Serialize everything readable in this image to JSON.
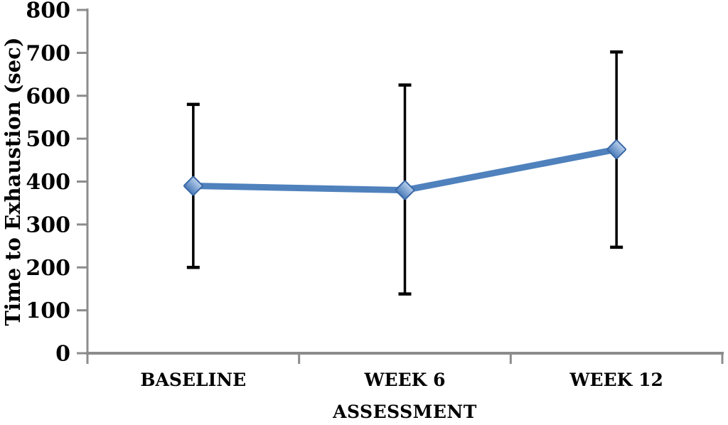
{
  "chart_data": {
    "type": "line",
    "categories": [
      "BASELINE",
      "WEEK 6",
      "WEEK 12"
    ],
    "series": [
      {
        "name": "Time to Exhaustion",
        "values": [
          390,
          380,
          475
        ],
        "error_low": [
          200,
          138,
          247
        ],
        "error_high": [
          580,
          625,
          702
        ]
      }
    ],
    "title": "",
    "xlabel": "ASSESSMENT",
    "ylabel": "Time to Exhaustion (sec)",
    "ylim": [
      0,
      800
    ],
    "ytick_step": 100,
    "yticks": [
      0,
      100,
      200,
      300,
      400,
      500,
      600,
      700,
      800
    ],
    "grid": false,
    "legend": false,
    "colors": {
      "line": "#4f81bd",
      "marker_fill_top": "#b9d1ed",
      "marker_fill_bottom": "#4a7ab8",
      "marker_stroke": "#3a68a5",
      "error_bar": "#000000",
      "axis": "#8c8c8c",
      "text": "#000000"
    }
  }
}
